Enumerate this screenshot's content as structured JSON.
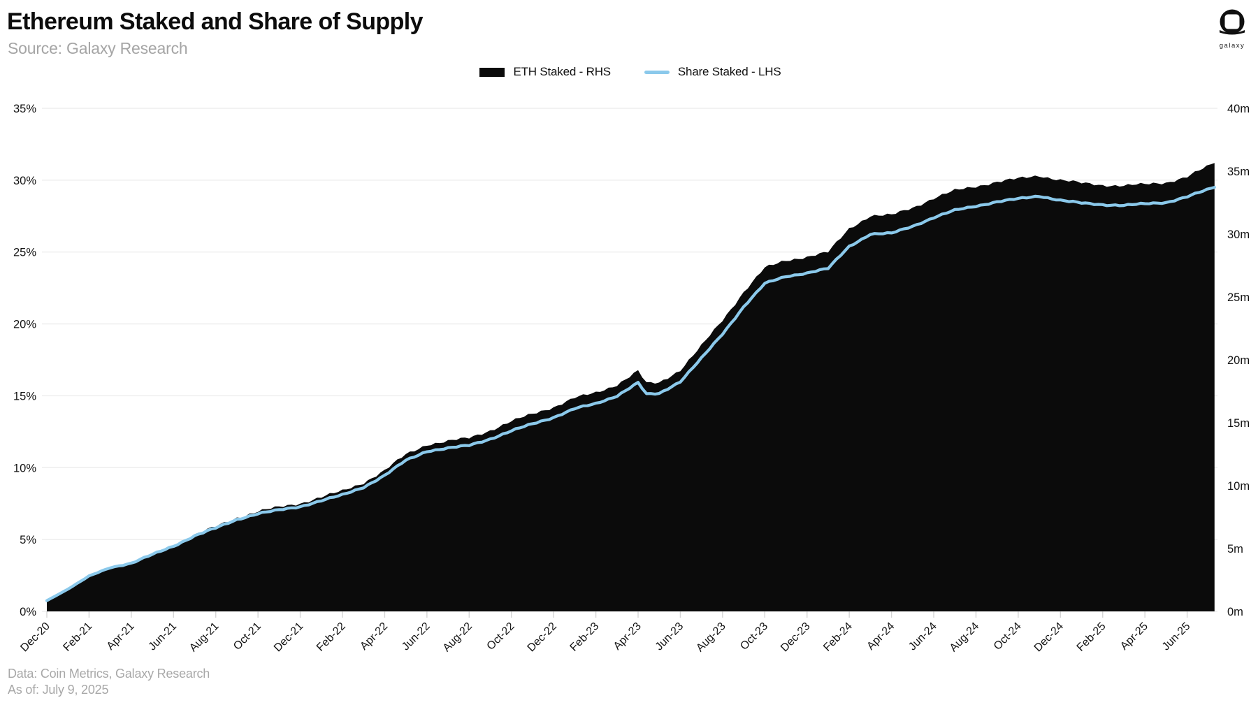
{
  "header": {
    "title": "Ethereum Staked and Share of Supply",
    "source": "Source: Galaxy Research"
  },
  "brand": {
    "logo_label": "galaxy"
  },
  "legend": {
    "items": [
      {
        "label": "ETH Staked - RHS",
        "marker": "area-swatch",
        "color": "#0b0b0b"
      },
      {
        "label": "Share Staked - LHS",
        "marker": "line-swatch",
        "color": "#8bc9eb"
      }
    ]
  },
  "footer": {
    "data_source": "Data: Coin Metrics, Galaxy Research",
    "as_of": "As of: July 9, 2025"
  },
  "chart_data": {
    "type": "area",
    "title": "Ethereum Staked and Share of Supply",
    "x_axis": {
      "tick_labels": [
        "Dec-20",
        "Feb-21",
        "Apr-21",
        "Jun-21",
        "Aug-21",
        "Oct-21",
        "Dec-21",
        "Feb-22",
        "Apr-22",
        "Jun-22",
        "Aug-22",
        "Oct-22",
        "Dec-22",
        "Feb-23",
        "Apr-23",
        "Jun-23",
        "Aug-23",
        "Oct-23",
        "Dec-23",
        "Feb-24",
        "Apr-24",
        "Jun-24",
        "Aug-24",
        "Oct-24",
        "Dec-24",
        "Feb-25",
        "Apr-25",
        "Jun-25"
      ],
      "months_per_tick": 2
    },
    "left_axis": {
      "title": "Share Staked",
      "tick_labels": [
        "0%",
        "5%",
        "10%",
        "15%",
        "20%",
        "25%",
        "30%",
        "35%"
      ],
      "range": [
        0,
        35
      ],
      "grid": true
    },
    "right_axis": {
      "title": "ETH Staked",
      "tick_labels": [
        "0m",
        "5m",
        "10m",
        "15m",
        "20m",
        "25m",
        "30m",
        "35m",
        "40m"
      ],
      "range": [
        0,
        40
      ],
      "grid": false
    },
    "legend_position": "top-center",
    "series": [
      {
        "name": "ETH Staked - RHS",
        "axis": "right",
        "style": "area",
        "color": "#0b0b0b",
        "unit": "million ETH"
      },
      {
        "name": "Share Staked - LHS",
        "axis": "left",
        "style": "line",
        "color": "#8bc9eb",
        "unit": "%"
      }
    ],
    "samples_note": "each sample = [date, months_since_Dec20, share_staked_pct_LHS, eth_staked_millions_RHS]",
    "samples": [
      [
        "Dec-20",
        0,
        0.75,
        0.86
      ],
      [
        "Jan-21",
        1,
        1.55,
        1.77
      ],
      [
        "Feb-21",
        2,
        2.45,
        2.8
      ],
      [
        "Mar-21",
        3,
        3.05,
        3.5
      ],
      [
        "Apr-21",
        4,
        3.35,
        3.85
      ],
      [
        "May-21",
        5,
        3.95,
        4.56
      ],
      [
        "Jun-21",
        6,
        4.55,
        5.26
      ],
      [
        "Jul-21",
        7,
        5.25,
        6.09
      ],
      [
        "Aug-21",
        8,
        5.8,
        6.74
      ],
      [
        "Sep-21",
        9,
        6.4,
        7.45
      ],
      [
        "Oct-21",
        10,
        6.8,
        7.95
      ],
      [
        "Nov-21",
        11,
        7.05,
        8.28
      ],
      [
        "Dec-21",
        12,
        7.3,
        8.6
      ],
      [
        "Jan-22",
        13,
        7.7,
        9.08
      ],
      [
        "Feb-22",
        14,
        8.1,
        9.57
      ],
      [
        "Mar-22",
        15,
        8.65,
        10.24
      ],
      [
        "Apr-22",
        16,
        9.45,
        11.2
      ],
      [
        "May-22",
        17,
        10.5,
        12.47
      ],
      [
        "Jun-22",
        18,
        11.15,
        13.27
      ],
      [
        "Jul-22",
        19,
        11.35,
        13.53
      ],
      [
        "Aug-22",
        20,
        11.55,
        13.79
      ],
      [
        "Sep-22",
        21,
        12.0,
        14.4
      ],
      [
        "Oct-22",
        22,
        12.55,
        15.1
      ],
      [
        "Nov-22",
        23,
        13.05,
        15.7
      ],
      [
        "Dec-22",
        24,
        13.5,
        16.25
      ],
      [
        "Jan-23",
        25,
        14.1,
        16.97
      ],
      [
        "Feb-23",
        26,
        14.45,
        17.38
      ],
      [
        "Mar-23",
        27,
        15.0,
        18.03
      ],
      [
        "Apr-23",
        28,
        15.9,
        19.1
      ],
      [
        "Apr-23",
        28.4,
        15.1,
        18.12
      ],
      [
        "May-23",
        29,
        15.15,
        18.18
      ],
      [
        "Jun-23",
        30,
        16.0,
        19.2
      ],
      [
        "Jul-23",
        31,
        17.6,
        21.1
      ],
      [
        "Aug-23",
        32,
        19.3,
        23.15
      ],
      [
        "Sep-23",
        33,
        21.2,
        25.4
      ],
      [
        "Oct-23",
        34,
        22.8,
        27.3
      ],
      [
        "Nov-23",
        35,
        23.3,
        27.9
      ],
      [
        "Dec-23",
        36,
        23.55,
        28.2
      ],
      [
        "Jan-24",
        37,
        23.85,
        28.55
      ],
      [
        "Feb-24",
        38,
        25.4,
        30.45
      ],
      [
        "Mar-24",
        39,
        26.25,
        31.45
      ],
      [
        "Apr-24",
        40,
        26.3,
        31.5
      ],
      [
        "May-24",
        41,
        26.8,
        32.1
      ],
      [
        "Jun-24",
        42,
        27.4,
        32.85
      ],
      [
        "Jul-24",
        43,
        27.9,
        33.45
      ],
      [
        "Aug-24",
        44,
        28.2,
        33.8
      ],
      [
        "Sep-24",
        45,
        28.5,
        34.15
      ],
      [
        "Oct-24",
        46,
        28.7,
        34.4
      ],
      [
        "Nov-24",
        47,
        28.9,
        34.65
      ],
      [
        "Dec-24",
        48,
        28.6,
        34.3
      ],
      [
        "Jan-25",
        49,
        28.4,
        34.05
      ],
      [
        "Feb-25",
        50,
        28.3,
        33.9
      ],
      [
        "Mar-25",
        51,
        28.25,
        33.85
      ],
      [
        "Apr-25",
        52,
        28.35,
        33.95
      ],
      [
        "May-25",
        53,
        28.45,
        34.1
      ],
      [
        "Jun-25",
        54,
        28.85,
        34.55
      ],
      [
        "Jul-25",
        55.3,
        29.5,
        35.65
      ]
    ]
  }
}
